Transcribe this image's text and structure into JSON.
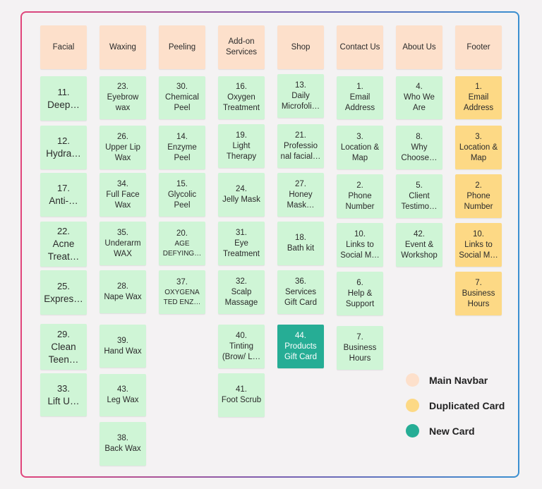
{
  "columns": [
    {
      "nav": "Facial",
      "cards": [
        {
          "num": "11.",
          "text": "Deep…"
        },
        {
          "num": "12.",
          "text": "Hydra…"
        },
        {
          "num": "17.",
          "text": "Anti-…"
        },
        {
          "num": "22.",
          "text": "Acne Treat…"
        },
        {
          "num": "25.",
          "text": "Expres…"
        },
        {
          "num": "29.",
          "text": "Clean Teen…"
        },
        {
          "num": "33.",
          "text": "Lift U…"
        }
      ]
    },
    {
      "nav": "Waxing",
      "cards": [
        {
          "num": "23.",
          "text": "Eyebrow wax"
        },
        {
          "num": "26.",
          "text": "Upper Lip Wax"
        },
        {
          "num": "34.",
          "text": "Full Face Wax"
        },
        {
          "num": "35.",
          "text": "Underarm WAX"
        },
        {
          "num": "28.",
          "text": "Nape Wax"
        },
        {
          "num": "39.",
          "text": "Hand Wax"
        },
        {
          "num": "43.",
          "text": "Leg Wax"
        },
        {
          "num": "38.",
          "text": "Back Wax"
        }
      ]
    },
    {
      "nav": "Peeling",
      "cards": [
        {
          "num": "30.",
          "text": "Chemical Peel"
        },
        {
          "num": "14.",
          "text": "Enzyme Peel"
        },
        {
          "num": "15.",
          "text": "Glycolic Peel"
        },
        {
          "num": "20.",
          "text": "AGE DEFYING…"
        },
        {
          "num": "37.",
          "text": "OXYGENA TED ENZ…"
        }
      ]
    },
    {
      "nav": "Add-on Services",
      "cards": [
        {
          "num": "16.",
          "text": "Oxygen Treatment"
        },
        {
          "num": "19.",
          "text": "Light Therapy"
        },
        {
          "num": "24.",
          "text": "Jelly Mask"
        },
        {
          "num": "31.",
          "text": "Eye Treatment"
        },
        {
          "num": "32.",
          "text": "Scalp Massage"
        },
        {
          "num": "40.",
          "text": "Tinting (Brow/ L…"
        },
        {
          "num": "41.",
          "text": "Foot Scrub"
        }
      ]
    },
    {
      "nav": "Shop",
      "cards": [
        {
          "num": "13.",
          "text": "Daily Microfoli…"
        },
        {
          "num": "21.",
          "text": "Professio nal facial…"
        },
        {
          "num": "27.",
          "text": "Honey Mask…"
        },
        {
          "num": "18.",
          "text": "Bath kit"
        },
        {
          "num": "36.",
          "text": "Services Gift Card"
        },
        {
          "num": "44.",
          "text": "Products Gift Card"
        }
      ]
    },
    {
      "nav": "Contact Us",
      "cards": [
        {
          "num": "1.",
          "text": "Email Address"
        },
        {
          "num": "3.",
          "text": "Location & Map"
        },
        {
          "num": "2.",
          "text": "Phone Number"
        },
        {
          "num": "10.",
          "text": "Links to Social M…"
        },
        {
          "num": "6.",
          "text": "Help & Support"
        },
        {
          "num": "7.",
          "text": "Business Hours"
        }
      ]
    },
    {
      "nav": "About Us",
      "cards": [
        {
          "num": "4.",
          "text": "Who We Are"
        },
        {
          "num": "8.",
          "text": "Why Choose…"
        },
        {
          "num": "5.",
          "text": "Client Testimo…"
        },
        {
          "num": "42.",
          "text": "Event & Workshop"
        }
      ]
    },
    {
      "nav": "Footer",
      "cards": [
        {
          "num": "1.",
          "text": "Email Address"
        },
        {
          "num": "3.",
          "text": "Location & Map"
        },
        {
          "num": "2.",
          "text": "Phone Number"
        },
        {
          "num": "10.",
          "text": "Links to Social M…"
        },
        {
          "num": "7.",
          "text": "Business Hours"
        }
      ]
    }
  ],
  "legend": [
    {
      "label": "Main Navbar",
      "color": "#fde0cb"
    },
    {
      "label": "Duplicated Card",
      "color": "#fdd985"
    },
    {
      "label": "New Card",
      "color": "#26ad95"
    }
  ]
}
